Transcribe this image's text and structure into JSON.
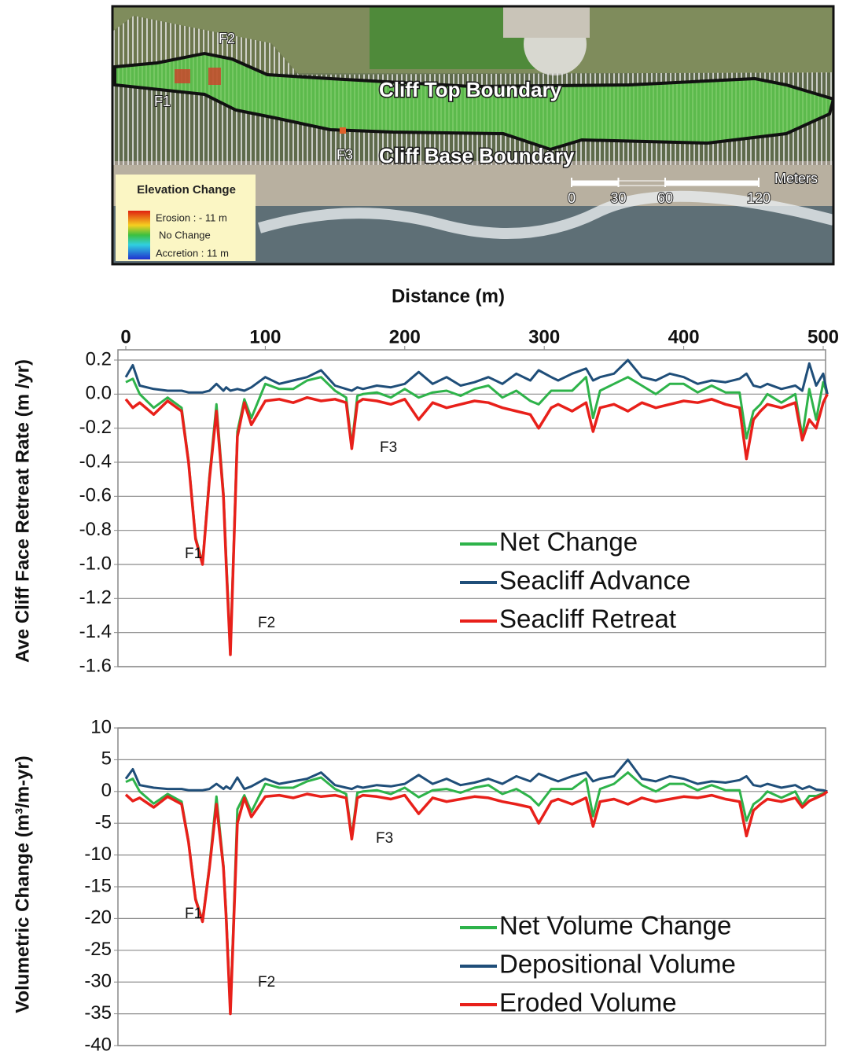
{
  "map": {
    "labels": {
      "cliff_top": "Cliff Top Boundary",
      "cliff_base": "Cliff Base Boundary",
      "f1": "F1",
      "f2": "F2",
      "f3": "F3"
    },
    "legend": {
      "title": "Elevation Change",
      "erosion": "Erosion : - 11 m",
      "no_change": "No Change",
      "accretion": "Accretion : 11 m"
    },
    "scale": {
      "unit": "Meters",
      "ticks": [
        0,
        30,
        60,
        120
      ]
    }
  },
  "chart_data": [
    {
      "type": "line",
      "x_label": "Distance (m)",
      "y_label": "Ave Cliff Face Retreat Rate (m /yr)",
      "xlim": [
        0,
        500
      ],
      "xticks": [
        0,
        100,
        200,
        300,
        400,
        500
      ],
      "ylim": [
        -1.6,
        0.2
      ],
      "yticks": [
        -1.6,
        -1.4,
        -1.2,
        {
          "value": -1,
          "label": "-1.0"
        },
        -0.8,
        -0.6,
        -0.4,
        -0.2,
        {
          "value": 0,
          "label": "0.0"
        },
        0.2
      ],
      "grid": true,
      "legend": "lower right",
      "annotations": [
        "F1",
        "F2",
        "F3"
      ],
      "x": [
        0,
        5,
        10,
        20,
        30,
        40,
        45,
        50,
        55,
        60,
        65,
        70,
        72,
        75,
        80,
        85,
        90,
        100,
        110,
        120,
        130,
        140,
        150,
        158,
        162,
        166,
        170,
        180,
        190,
        200,
        210,
        220,
        230,
        240,
        250,
        260,
        270,
        280,
        290,
        296,
        305,
        310,
        320,
        330,
        335,
        340,
        350,
        360,
        370,
        380,
        390,
        400,
        410,
        420,
        430,
        440,
        445,
        450,
        455,
        460,
        470,
        480,
        485,
        490,
        495,
        500,
        503
      ],
      "series": [
        {
          "name": "Net Change",
          "color": "#2eb34a",
          "values": [
            0.07,
            0.09,
            0.0,
            -0.08,
            -0.02,
            -0.08,
            -0.39,
            -0.84,
            -0.99,
            -0.48,
            -0.06,
            -0.58,
            -0.96,
            -1.5,
            -0.22,
            -0.03,
            -0.14,
            0.06,
            0.03,
            0.03,
            0.08,
            0.1,
            0.02,
            -0.02,
            -0.3,
            -0.01,
            0.0,
            0.01,
            -0.02,
            0.03,
            -0.02,
            0.01,
            0.02,
            -0.01,
            0.03,
            0.05,
            -0.02,
            0.02,
            -0.04,
            -0.06,
            0.02,
            0.02,
            0.02,
            0.1,
            -0.14,
            0.02,
            0.06,
            0.1,
            0.05,
            0.0,
            0.06,
            0.06,
            0.01,
            0.05,
            0.01,
            0.01,
            -0.26,
            -0.1,
            -0.06,
            0.0,
            -0.05,
            0.0,
            -0.25,
            0.03,
            -0.15,
            0.07,
            0.0
          ]
        },
        {
          "name": "Seacliff Advance",
          "color": "#1f4e79",
          "values": [
            0.1,
            0.17,
            0.05,
            0.03,
            0.02,
            0.02,
            0.01,
            0.01,
            0.01,
            0.02,
            0.06,
            0.02,
            0.04,
            0.02,
            0.03,
            0.02,
            0.04,
            0.1,
            0.06,
            0.08,
            0.1,
            0.14,
            0.05,
            0.03,
            0.02,
            0.04,
            0.03,
            0.05,
            0.04,
            0.06,
            0.13,
            0.06,
            0.1,
            0.05,
            0.07,
            0.1,
            0.06,
            0.12,
            0.08,
            0.14,
            0.1,
            0.08,
            0.12,
            0.15,
            0.08,
            0.1,
            0.12,
            0.2,
            0.1,
            0.08,
            0.12,
            0.1,
            0.06,
            0.08,
            0.07,
            0.09,
            0.12,
            0.05,
            0.04,
            0.06,
            0.03,
            0.05,
            0.02,
            0.18,
            0.05,
            0.12,
            0.0
          ]
        },
        {
          "name": "Seacliff Retreat",
          "color": "#e8201a",
          "values": [
            -0.03,
            -0.08,
            -0.05,
            -0.12,
            -0.04,
            -0.1,
            -0.4,
            -0.85,
            -1.0,
            -0.5,
            -0.1,
            -0.6,
            -1.0,
            -1.53,
            -0.25,
            -0.05,
            -0.18,
            -0.04,
            -0.03,
            -0.05,
            -0.02,
            -0.04,
            -0.03,
            -0.05,
            -0.32,
            -0.05,
            -0.03,
            -0.04,
            -0.06,
            -0.03,
            -0.15,
            -0.05,
            -0.08,
            -0.06,
            -0.04,
            -0.05,
            -0.08,
            -0.1,
            -0.12,
            -0.2,
            -0.08,
            -0.06,
            -0.1,
            -0.05,
            -0.22,
            -0.08,
            -0.06,
            -0.1,
            -0.05,
            -0.08,
            -0.06,
            -0.04,
            -0.05,
            -0.03,
            -0.06,
            -0.08,
            -0.38,
            -0.15,
            -0.1,
            -0.06,
            -0.08,
            -0.05,
            -0.27,
            -0.15,
            -0.2,
            -0.05,
            0
          ]
        }
      ]
    },
    {
      "type": "line",
      "y_label": "Volumetric Change (m³/m-yr)",
      "xlim": [
        0,
        500
      ],
      "ylim": [
        -40,
        10
      ],
      "yticks": [
        -40,
        -35,
        -30,
        -25,
        -20,
        -15,
        -10,
        -5,
        0,
        5,
        10
      ],
      "grid": true,
      "legend": "lower right",
      "annotations": [
        "F1",
        "F2",
        "F3"
      ],
      "x": [
        0,
        5,
        10,
        20,
        30,
        40,
        45,
        50,
        55,
        60,
        65,
        70,
        72,
        75,
        80,
        85,
        90,
        100,
        110,
        120,
        130,
        140,
        150,
        158,
        162,
        166,
        170,
        180,
        190,
        200,
        210,
        220,
        230,
        240,
        250,
        260,
        270,
        280,
        290,
        296,
        305,
        310,
        320,
        330,
        335,
        340,
        350,
        360,
        370,
        380,
        390,
        400,
        410,
        420,
        430,
        440,
        445,
        450,
        455,
        460,
        470,
        480,
        485,
        490,
        495,
        500,
        503
      ],
      "series": [
        {
          "name": "Net Volume Change",
          "color": "#2eb34a",
          "values": [
            1.5,
            2,
            0,
            -1.9,
            -0.4,
            -1.6,
            -7.8,
            -16.8,
            -20.3,
            -11.6,
            -0.8,
            -11.6,
            -19.2,
            -34.6,
            -2.8,
            -0.6,
            -3.2,
            1.2,
            0.6,
            0.6,
            1.6,
            2.2,
            0.4,
            -0.4,
            -7.1,
            -0.2,
            0,
            0.2,
            -0.4,
            0.6,
            -0.9,
            0.2,
            0.4,
            -0.2,
            0.6,
            1,
            -0.4,
            0.4,
            -0.9,
            -2.2,
            0.4,
            0.4,
            0.4,
            2,
            -3.9,
            0.4,
            1.2,
            3,
            1,
            0,
            1.2,
            1.2,
            0.2,
            1,
            0.2,
            0.2,
            -4.6,
            -2,
            -1.2,
            0,
            -1,
            0,
            -2.1,
            -0.7,
            -0.7,
            -0.3,
            0
          ]
        },
        {
          "name": "Depositional Volume",
          "color": "#1f4e79",
          "values": [
            2,
            3.5,
            1,
            0.6,
            0.4,
            0.4,
            0.2,
            0.2,
            0.2,
            0.4,
            1.2,
            0.4,
            0.8,
            0.4,
            2.2,
            0.4,
            0.8,
            2,
            1.2,
            1.6,
            2,
            3,
            1,
            0.6,
            0.4,
            0.8,
            0.6,
            1,
            0.8,
            1.2,
            2.6,
            1.2,
            2,
            1,
            1.4,
            2,
            1.2,
            2.4,
            1.6,
            2.8,
            2,
            1.6,
            2.4,
            3,
            1.6,
            2,
            2.4,
            5,
            2,
            1.6,
            2.4,
            2,
            1.2,
            1.6,
            1.4,
            1.8,
            2.4,
            1,
            0.8,
            1.2,
            0.6,
            1,
            0.4,
            0.8,
            0.3,
            0.2,
            0
          ]
        },
        {
          "name": "Eroded Volume",
          "color": "#e8201a",
          "values": [
            -0.5,
            -1.5,
            -1,
            -2.5,
            -0.8,
            -2,
            -8,
            -17,
            -20.5,
            -12,
            -2,
            -12,
            -20,
            -35,
            -5,
            -1,
            -4,
            -0.8,
            -0.6,
            -1,
            -0.4,
            -0.8,
            -0.6,
            -1,
            -7.5,
            -1,
            -0.6,
            -0.8,
            -1.2,
            -0.6,
            -3.5,
            -1,
            -1.6,
            -1.2,
            -0.8,
            -1,
            -1.6,
            -2,
            -2.5,
            -5,
            -1.6,
            -1.2,
            -2,
            -1,
            -5.5,
            -1.6,
            -1.2,
            -2,
            -1,
            -1.6,
            -1.2,
            -0.8,
            -1,
            -0.6,
            -1.2,
            -1.6,
            -7,
            -3,
            -2,
            -1.2,
            -1.6,
            -1,
            -2.5,
            -1.5,
            -1,
            -0.5,
            0
          ]
        }
      ]
    }
  ]
}
